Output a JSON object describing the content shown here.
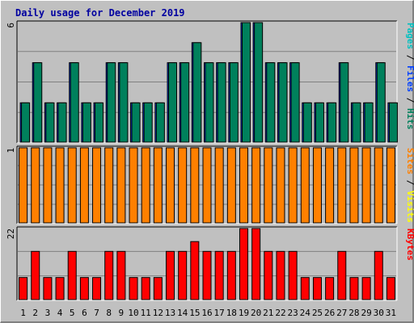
{
  "chart_data": {
    "type": "bar",
    "title": "Daily usage for December 2019",
    "days": [
      "1",
      "2",
      "3",
      "4",
      "5",
      "6",
      "7",
      "8",
      "9",
      "10",
      "11",
      "12",
      "13",
      "14",
      "15",
      "16",
      "17",
      "18",
      "19",
      "20",
      "21",
      "22",
      "23",
      "24",
      "25",
      "26",
      "27",
      "28",
      "29",
      "30",
      "31"
    ],
    "weekend_days": [
      1,
      7,
      8,
      14,
      15,
      21,
      22,
      28,
      29
    ],
    "panels": [
      {
        "key": "hits",
        "ymax_label": "6",
        "ymax": 6,
        "series": [
          {
            "name": "Pages",
            "color": "#00c0c0",
            "values": [
              0,
              0,
              0,
              0,
              0,
              0,
              0,
              0,
              0,
              0,
              0,
              0,
              0,
              0,
              0,
              0,
              0,
              0,
              0,
              0,
              0,
              0,
              0,
              0,
              0,
              0,
              0,
              0,
              0,
              0,
              0
            ]
          },
          {
            "name": "Files",
            "color": "#0040ff",
            "values": [
              2,
              4,
              2,
              2,
              4,
              2,
              2,
              4,
              4,
              2,
              2,
              2,
              4,
              4,
              5,
              4,
              4,
              4,
              6,
              6,
              4,
              4,
              4,
              2,
              2,
              2,
              4,
              2,
              2,
              4,
              2
            ]
          },
          {
            "name": "Hits",
            "color": "#00805c",
            "values": [
              2,
              4,
              2,
              2,
              4,
              2,
              2,
              4,
              4,
              2,
              2,
              2,
              4,
              4,
              5,
              4,
              4,
              4,
              6,
              6,
              4,
              4,
              4,
              2,
              2,
              2,
              4,
              2,
              2,
              4,
              2
            ]
          }
        ],
        "label_parts": [
          {
            "text": "Pages",
            "color": "#00c0c0"
          },
          {
            "text": " / ",
            "color": "#000000"
          },
          {
            "text": "Files",
            "color": "#0040ff"
          },
          {
            "text": " / ",
            "color": "#000000"
          },
          {
            "text": "Hits",
            "color": "#00805c"
          }
        ]
      },
      {
        "key": "visits",
        "ymax_label": "1",
        "ymax": 1,
        "series": [
          {
            "name": "Sites",
            "color": "#ff8000",
            "values": [
              1,
              1,
              1,
              1,
              1,
              1,
              1,
              1,
              1,
              1,
              1,
              1,
              1,
              1,
              1,
              1,
              1,
              1,
              1,
              1,
              1,
              1,
              1,
              1,
              1,
              1,
              1,
              1,
              1,
              1,
              1
            ]
          },
          {
            "name": "Visits",
            "color": "#ffff00",
            "values": [
              0,
              0,
              0,
              0,
              0,
              0,
              0,
              0,
              0,
              0,
              0,
              0,
              0,
              0,
              0,
              0,
              0,
              0,
              0,
              0,
              0,
              0,
              0,
              0,
              0,
              0,
              0,
              0,
              0,
              0,
              0
            ]
          }
        ],
        "label_parts": [
          {
            "text": "Sites",
            "color": "#ff8000"
          },
          {
            "text": " / ",
            "color": "#000000"
          },
          {
            "text": "Visits",
            "color": "#ffff00"
          }
        ]
      },
      {
        "key": "kbytes",
        "ymax_label": "22",
        "ymax": 22,
        "series": [
          {
            "name": "KBytes",
            "color": "#ff0000",
            "values": [
              7,
              15,
              7,
              7,
              15,
              7,
              7,
              15,
              15,
              7,
              7,
              7,
              15,
              15,
              18,
              15,
              15,
              15,
              22,
              22,
              15,
              15,
              15,
              7,
              7,
              7,
              15,
              7,
              7,
              15,
              7
            ]
          }
        ],
        "label_parts": [
          {
            "text": "KBytes",
            "color": "#ff0000"
          }
        ]
      }
    ],
    "colors": {
      "plot_bg": "#c0c0c0",
      "grid": "#808080",
      "weekday_label": "#000000",
      "weekend_label": "#00805c",
      "title": "#0000a0"
    }
  }
}
